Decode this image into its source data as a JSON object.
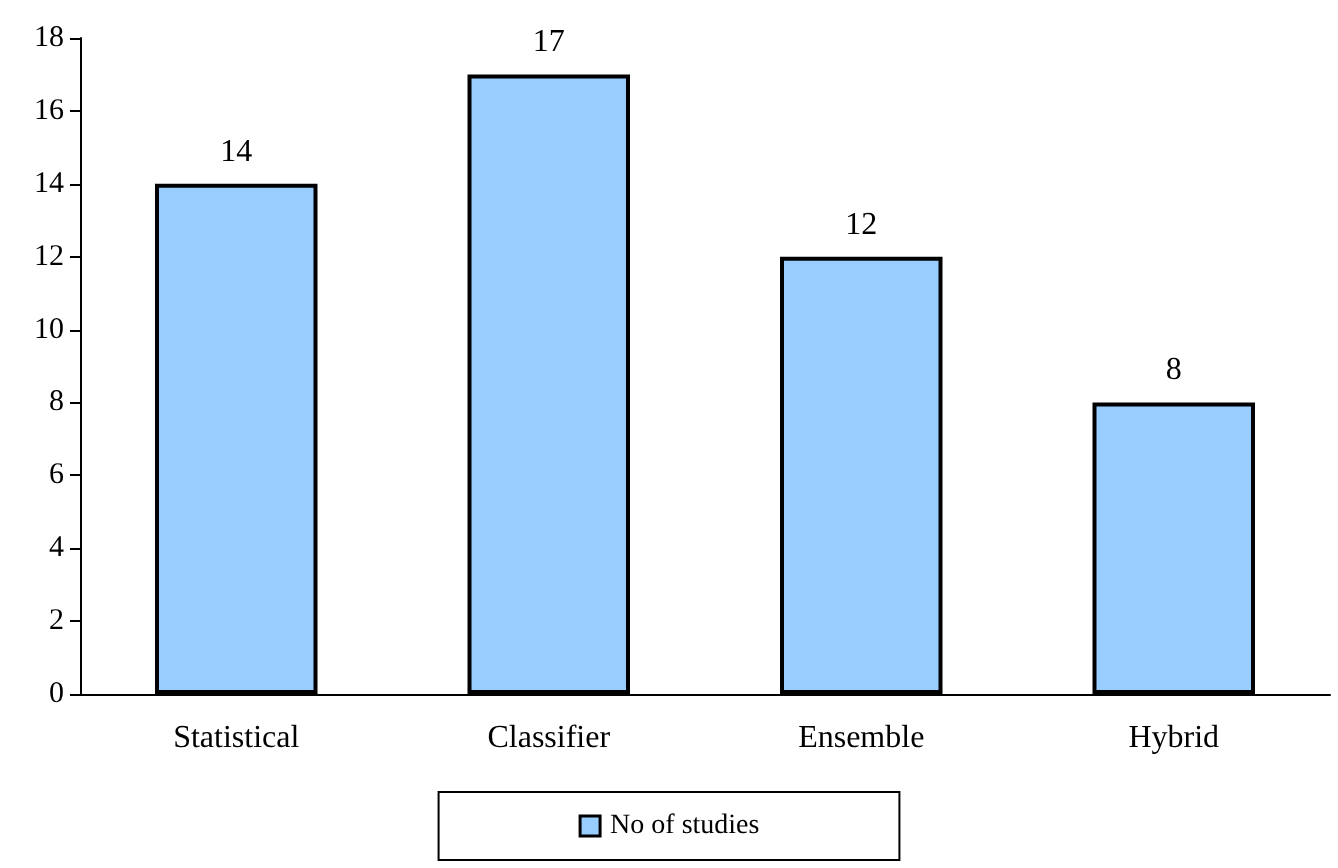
{
  "chart_data": {
    "type": "bar",
    "categories": [
      "Statistical",
      "Classifier",
      "Ensemble",
      "Hybrid"
    ],
    "series": [
      {
        "name": "No of studies",
        "color": "#99ccff",
        "values": [
          14,
          17,
          12,
          8
        ]
      }
    ],
    "ylim": [
      0,
      18
    ],
    "yticks": [
      0,
      2,
      4,
      6,
      8,
      10,
      12,
      14,
      16,
      18
    ],
    "grid": false,
    "legend": "bottom",
    "data_labels": true
  }
}
